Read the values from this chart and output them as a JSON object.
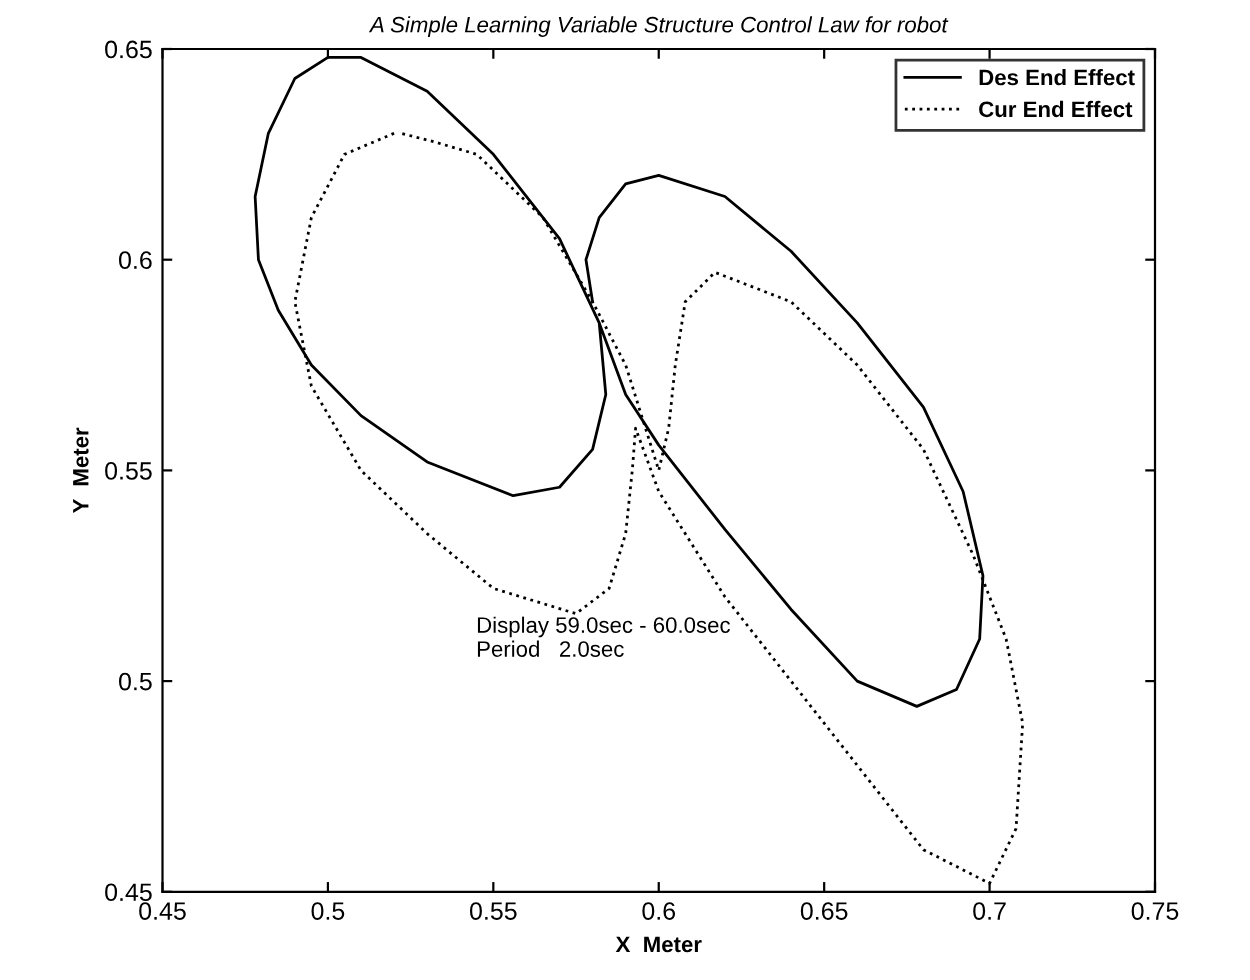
{
  "chart_data": {
    "type": "line",
    "title": "A Simple Learning Variable Structure Control Law for robot",
    "xlabel": "X  Meter",
    "ylabel": "Y  Meter",
    "annotations": [
      "Display 59.0sec - 60.0sec\nPeriod   2.0sec"
    ],
    "xlim": [
      0.45,
      0.75
    ],
    "xticks": [
      0.45,
      0.5,
      0.55,
      0.6,
      0.65,
      0.7,
      0.75
    ],
    "ylim": [
      0.45,
      0.65
    ],
    "yticks": [
      0.45,
      0.5,
      0.55,
      0.6,
      0.65
    ],
    "grid": false,
    "legend": "top right",
    "marker": "none",
    "series": [
      {
        "name": "Des End Effect",
        "color": "#000000",
        "line_style": "solid",
        "x": [
          0.582,
          0.57,
          0.55,
          0.53,
          0.51,
          0.5,
          0.49,
          0.482,
          0.478,
          0.479,
          0.485,
          0.495,
          0.51,
          0.53,
          0.556,
          0.57,
          0.58,
          0.584,
          0.582,
          0.59,
          0.6,
          0.62,
          0.64,
          0.66,
          0.678,
          0.69,
          0.697,
          0.698,
          0.692,
          0.68,
          0.66,
          0.64,
          0.62,
          0.6,
          0.59,
          0.582,
          0.578,
          0.58
        ],
        "values": [
          0.585,
          0.605,
          0.625,
          0.64,
          0.648,
          0.648,
          0.643,
          0.63,
          0.615,
          0.6,
          0.588,
          0.575,
          0.563,
          0.552,
          0.544,
          0.546,
          0.555,
          0.568,
          0.585,
          0.568,
          0.556,
          0.536,
          0.517,
          0.5,
          0.494,
          0.498,
          0.51,
          0.525,
          0.545,
          0.565,
          0.585,
          0.602,
          0.615,
          0.62,
          0.618,
          0.61,
          0.6,
          0.59
        ]
      },
      {
        "name": "Cur End Effect",
        "color": "#000000",
        "line_style": "dotted",
        "x": [
          0.52,
          0.505,
          0.495,
          0.49,
          0.495,
          0.51,
          0.53,
          0.55,
          0.575,
          0.585,
          0.59,
          0.592,
          0.593,
          0.6,
          0.62,
          0.64,
          0.66,
          0.68,
          0.7,
          0.708,
          0.71,
          0.705,
          0.695,
          0.68,
          0.66,
          0.64,
          0.617,
          0.608,
          0.605,
          0.603,
          0.6,
          0.59,
          0.58,
          0.565,
          0.545,
          0.532,
          0.522
        ],
        "values": [
          0.63,
          0.625,
          0.61,
          0.59,
          0.57,
          0.55,
          0.535,
          0.522,
          0.516,
          0.522,
          0.535,
          0.55,
          0.56,
          0.545,
          0.52,
          0.5,
          0.48,
          0.46,
          0.452,
          0.465,
          0.49,
          0.51,
          0.53,
          0.555,
          0.575,
          0.59,
          0.597,
          0.59,
          0.575,
          0.56,
          0.55,
          0.575,
          0.59,
          0.61,
          0.625,
          0.628,
          0.63
        ]
      }
    ]
  }
}
